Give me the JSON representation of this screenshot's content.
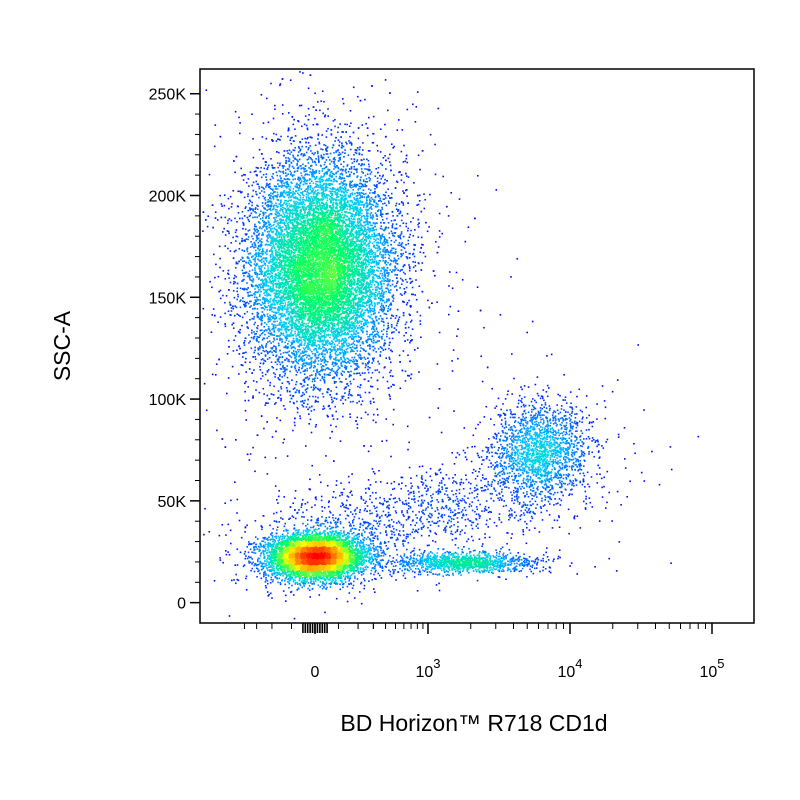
{
  "chart_data": {
    "type": "scatter",
    "title": "",
    "xlabel": "BD Horizon™ R718 CD1d",
    "ylabel": "SSC-A",
    "x_scale": "biexponential",
    "xlim": [
      -500,
      200000
    ],
    "ylim": [
      -10000,
      262144
    ],
    "density_coloring": true,
    "color_scale": [
      "#0000ff",
      "#00c8ff",
      "#00ff64",
      "#ffff00",
      "#ff8000",
      "#ff0000"
    ],
    "grid": false,
    "x_ticks": [
      {
        "value": 0,
        "label": "0"
      },
      {
        "value": 1000,
        "base": "10",
        "exp": "3"
      },
      {
        "value": 10000,
        "base": "10",
        "exp": "4"
      },
      {
        "value": 100000,
        "base": "10",
        "exp": "5"
      }
    ],
    "y_ticks": [
      {
        "value": 0,
        "label": "0"
      },
      {
        "value": 50000,
        "label": "50K"
      },
      {
        "value": 100000,
        "label": "100K"
      },
      {
        "value": 150000,
        "label": "150K"
      },
      {
        "value": 200000,
        "label": "200K"
      },
      {
        "value": 250000,
        "label": "250K"
      }
    ],
    "populations": [
      {
        "x_center": 20,
        "y_center": 165000,
        "n_events": 14000
      },
      {
        "x_center": 0,
        "y_center": 23000,
        "n_events": 6000
      },
      {
        "x_center": 6000,
        "y_center": 75000,
        "n_events": 1800
      },
      {
        "x_center": 1800,
        "y_center": 20000,
        "n_events": 1200
      },
      {
        "x_center": 800,
        "y_center": 45000,
        "n_events": 1100
      }
    ]
  }
}
